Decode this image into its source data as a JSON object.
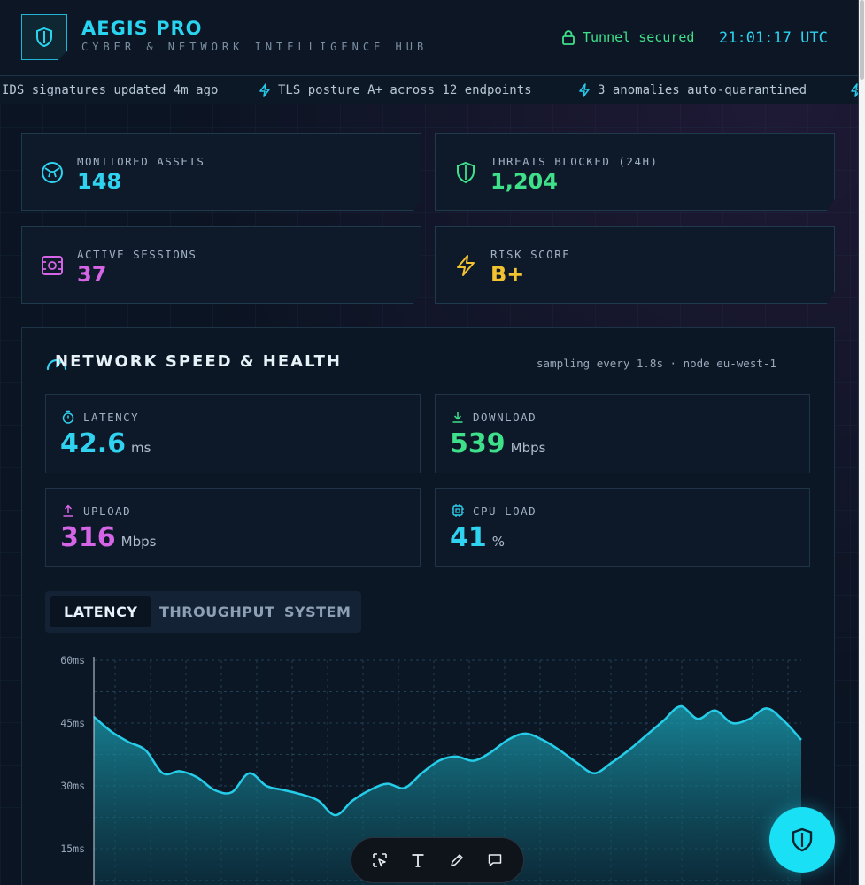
{
  "header": {
    "title": "AEGIS PRO",
    "subtitle": "CYBER & NETWORK INTELLIGENCE HUB",
    "tunnel_status": "Tunnel secured",
    "clock": "21:01:17 UTC"
  },
  "ticker": [
    "IDS signatures updated 4m ago",
    "TLS posture A+ across 12 endpoints",
    "3 anomalies auto-quarantined"
  ],
  "stats": [
    {
      "label": "MONITORED ASSETS",
      "value": "148",
      "color": "#2fd3ef",
      "icon": "network-globe-icon"
    },
    {
      "label": "THREATS BLOCKED (24H)",
      "value": "1,204",
      "color": "#3fe08a",
      "icon": "shield-icon"
    },
    {
      "label": "ACTIVE SESSIONS",
      "value": "37",
      "color": "#d565e6",
      "icon": "session-chip-icon"
    },
    {
      "label": "RISK SCORE",
      "value": "B+",
      "color": "#f2c230",
      "icon": "lightning-icon"
    }
  ],
  "network": {
    "title": "NETWORK SPEED & HEALTH",
    "meta": "sampling every 1.8s · node eu-west-1",
    "metrics": [
      {
        "label": "LATENCY",
        "value": "42.6",
        "unit": "ms",
        "color": "#2fd3ef",
        "icon": "stopwatch-icon"
      },
      {
        "label": "DOWNLOAD",
        "value": "539",
        "unit": "Mbps",
        "color": "#3fe08a",
        "icon": "download-icon"
      },
      {
        "label": "UPLOAD",
        "value": "316",
        "unit": "Mbps",
        "color": "#d565e6",
        "icon": "upload-icon"
      },
      {
        "label": "CPU LOAD",
        "value": "41",
        "unit": "%",
        "color": "#2fd3ef",
        "icon": "cpu-icon"
      }
    ],
    "tabs": [
      "LATENCY",
      "THROUGHPUT",
      "SYSTEM"
    ],
    "active_tab": "LATENCY"
  },
  "chart_data": {
    "type": "area",
    "title": "",
    "xlabel": "",
    "ylabel": "",
    "ylim": [
      0,
      60
    ],
    "yticks": [
      "60ms",
      "45ms",
      "30ms",
      "15ms"
    ],
    "ytick_values": [
      60,
      45,
      30,
      15
    ],
    "grid": true,
    "color": "#25cde8",
    "values": [
      46.5,
      43,
      40.5,
      38.5,
      33,
      33.5,
      32,
      29,
      28.5,
      33,
      30,
      29,
      28,
      26.5,
      23,
      26.5,
      29,
      30.5,
      29.5,
      33,
      36,
      37,
      36,
      38,
      41,
      42.5,
      41,
      38.5,
      35.5,
      33,
      35.5,
      38.5,
      42,
      45.5,
      49,
      46,
      48,
      45,
      46,
      48.5,
      45.5,
      41
    ]
  }
}
